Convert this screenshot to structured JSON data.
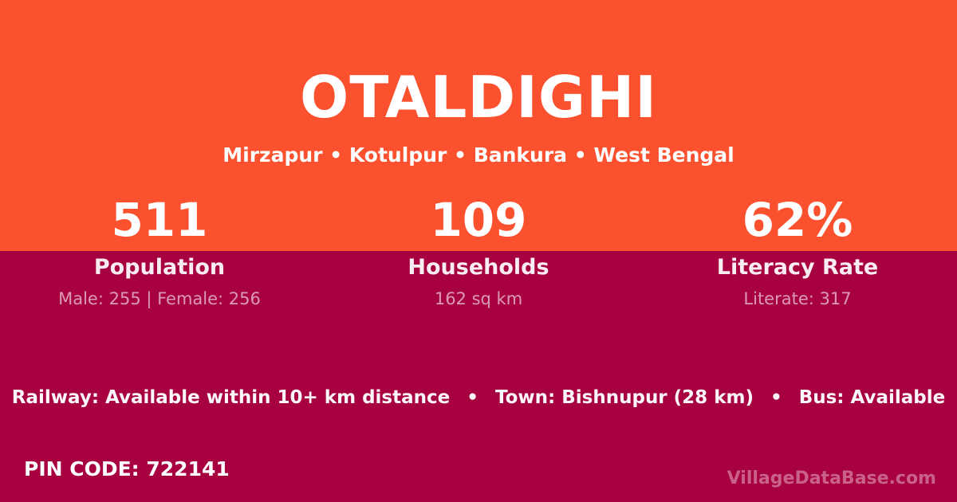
{
  "card": {
    "title": "OTALDIGHI",
    "subtitle": "Mirzapur • Kotulpur • Bankura • West Bengal"
  },
  "stats": [
    {
      "value": "511",
      "label": "Population",
      "detail": "Male: 255 | Female: 256"
    },
    {
      "value": "109",
      "label": "Households",
      "detail": "162 sq km"
    },
    {
      "value": "62%",
      "label": "Literacy Rate",
      "detail": "Literate: 317"
    }
  ],
  "info": {
    "railway": "Railway: Available within 10+ km distance",
    "bullet": "•",
    "town": "Town: Bishnupur (28 km)",
    "bus": "Bus: Available"
  },
  "footer": {
    "pin_code": "PIN CODE: 722141",
    "watermark": "VillageDataBase.com"
  },
  "colors": {
    "top_background": "#FC512F",
    "bottom_background": "#A80142"
  }
}
